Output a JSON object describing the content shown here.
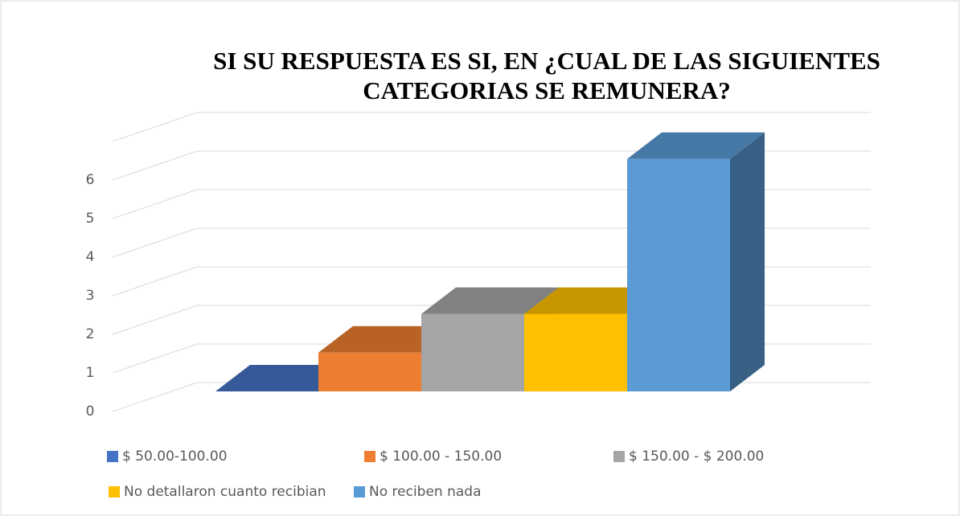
{
  "chart_data": {
    "type": "bar3d",
    "title": [
      "SI SU RESPUESTA ES SI, EN ¿CUAL DE LAS SIGUIENTES",
      "CATEGORIAS SE REMUNERA?"
    ],
    "series": [
      {
        "name": "$ 50.00-100.00",
        "color": "#4472c4",
        "values": [
          0
        ]
      },
      {
        "name": "$ 100.00 - 150.00",
        "color": "#ed7d31",
        "values": [
          1
        ]
      },
      {
        "name": "$ 150.00 - $ 200.00",
        "color": "#a5a5a5",
        "values": [
          2
        ]
      },
      {
        "name": "No detallaron cuanto recibian",
        "color": "#ffc000",
        "values": [
          2
        ]
      },
      {
        "name": "No reciben nada",
        "color": "#5b9bd5",
        "values": [
          6
        ]
      }
    ],
    "ylim": [
      0,
      7
    ],
    "yticks": [
      0,
      1,
      2,
      3,
      4,
      5,
      6
    ],
    "grid": true,
    "legend": "bottom"
  }
}
